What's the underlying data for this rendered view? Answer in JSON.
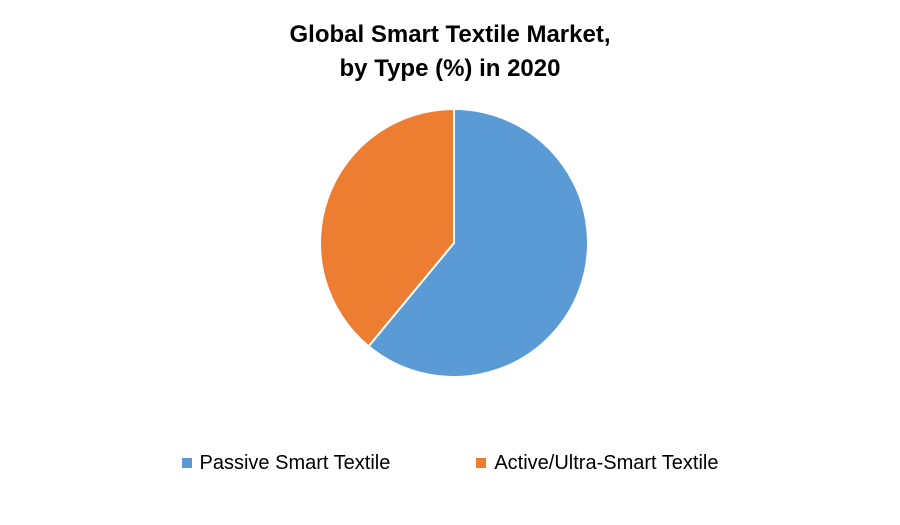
{
  "chart_data": {
    "type": "pie",
    "title_lines": [
      "Global Smart Textile Market,",
      "by Type (%) in 2020"
    ],
    "categories": [
      "Passive Smart Textile",
      "Active/Ultra-Smart Textile"
    ],
    "values": [
      61,
      39
    ],
    "colors": [
      "#5B9BD5",
      "#ED7D31"
    ],
    "legend_position": "bottom"
  }
}
